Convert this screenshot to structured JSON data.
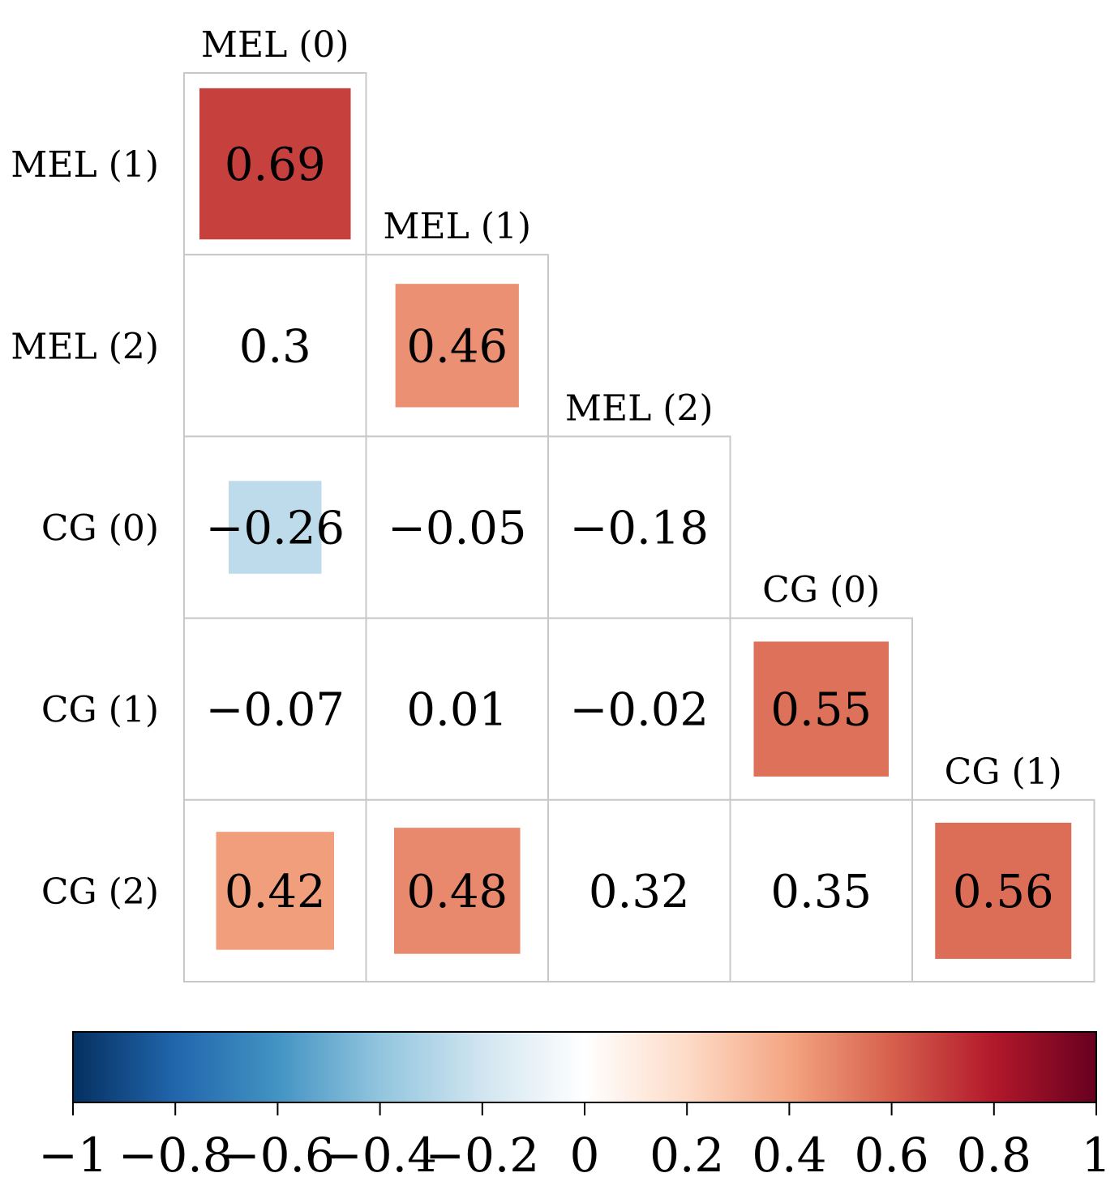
{
  "chart_data": {
    "type": "heatmap",
    "variables": [
      "MEL (0)",
      "MEL (1)",
      "MEL (2)",
      "CG (0)",
      "CG (1)",
      "CG (2)"
    ],
    "row_labels": [
      "MEL (1)",
      "MEL (2)",
      "CG (0)",
      "CG (1)",
      "CG (2)"
    ],
    "col_labels": [
      "MEL (0)",
      "MEL (1)",
      "MEL (2)",
      "CG (0)",
      "CG (1)"
    ],
    "cells": [
      {
        "row": 0,
        "col": 0,
        "value": 0.69,
        "label": "0.69"
      },
      {
        "row": 1,
        "col": 0,
        "value": 0.3,
        "label": "0.3"
      },
      {
        "row": 1,
        "col": 1,
        "value": 0.46,
        "label": "0.46"
      },
      {
        "row": 2,
        "col": 0,
        "value": -0.26,
        "label": "−0.26"
      },
      {
        "row": 2,
        "col": 1,
        "value": -0.05,
        "label": "−0.05"
      },
      {
        "row": 2,
        "col": 2,
        "value": -0.18,
        "label": "−0.18"
      },
      {
        "row": 3,
        "col": 0,
        "value": -0.07,
        "label": "−0.07"
      },
      {
        "row": 3,
        "col": 1,
        "value": 0.01,
        "label": "0.01"
      },
      {
        "row": 3,
        "col": 2,
        "value": -0.02,
        "label": "−0.02"
      },
      {
        "row": 3,
        "col": 3,
        "value": 0.55,
        "label": "0.55"
      },
      {
        "row": 4,
        "col": 0,
        "value": 0.42,
        "label": "0.42"
      },
      {
        "row": 4,
        "col": 1,
        "value": 0.48,
        "label": "0.48"
      },
      {
        "row": 4,
        "col": 2,
        "value": 0.32,
        "label": "0.32"
      },
      {
        "row": 4,
        "col": 3,
        "value": 0.35,
        "label": "0.35"
      },
      {
        "row": 4,
        "col": 4,
        "value": 0.56,
        "label": "0.56"
      }
    ],
    "significance_marked": [
      true,
      false,
      true,
      true,
      false,
      false,
      false,
      false,
      false,
      true,
      true,
      true,
      false,
      false,
      true
    ],
    "colorbar": {
      "range": [
        -1,
        1
      ],
      "ticks": [
        -1,
        -0.8,
        -0.6,
        -0.4,
        -0.2,
        0,
        0.2,
        0.4,
        0.6,
        0.8,
        1
      ],
      "tick_labels": [
        "−1",
        "−0.8",
        "−0.6",
        "−0.4",
        "−0.2",
        "0",
        "0.2",
        "0.4",
        "0.6",
        "0.8",
        "1"
      ],
      "colors": [
        "#053061",
        "#2166ac",
        "#4393c3",
        "#92c5de",
        "#d1e5f0",
        "#ffffff",
        "#fddbc7",
        "#f4a582",
        "#d6604d",
        "#b2182b",
        "#67001f"
      ]
    },
    "title": "",
    "legend": "bottom"
  }
}
